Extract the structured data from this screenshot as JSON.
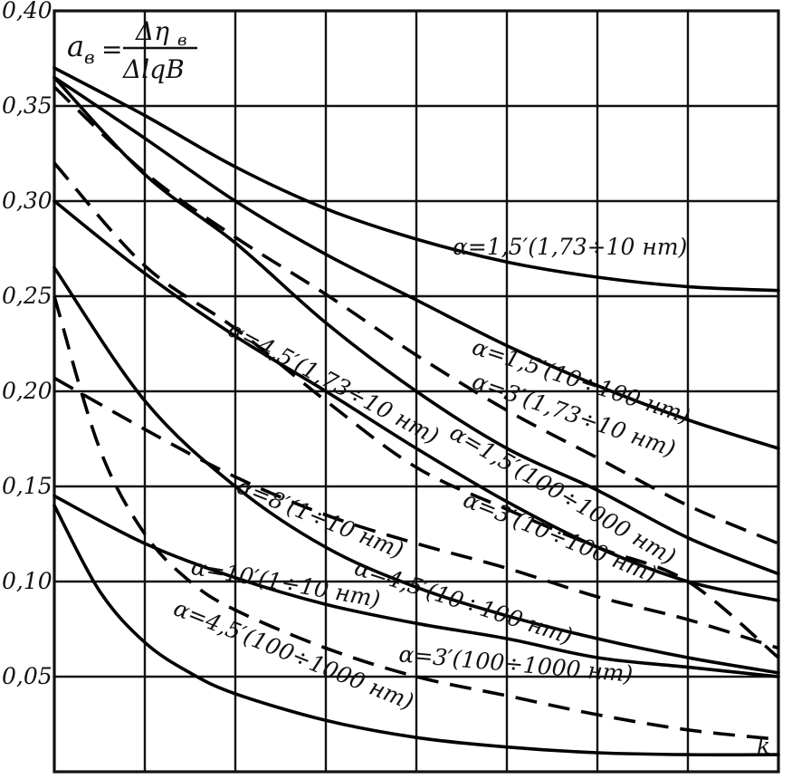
{
  "chart_data": {
    "type": "line",
    "title": "",
    "ylabel_formula": {
      "lhs": "a",
      "lhs_sub": "в",
      "eq": "=",
      "num": "Δη",
      "num_sub": "в",
      "den": "ΔlqB"
    },
    "xlabel": "k",
    "ylim": [
      0,
      0.4
    ],
    "xlim": [
      0,
      8
    ],
    "y_ticks": [
      "0,40",
      "0,35",
      "0,30",
      "0,25",
      "0,20",
      "0,15",
      "0,10",
      "0,05"
    ],
    "y_tick_values": [
      0.4,
      0.35,
      0.3,
      0.25,
      0.2,
      0.15,
      0.1,
      0.05
    ],
    "grid": true,
    "series": [
      {
        "name": "α=1,5′(1,73÷10 нт)",
        "style": "solid",
        "x": [
          0,
          1,
          2,
          3,
          4,
          5,
          6,
          7,
          8
        ],
        "y": [
          0.37,
          0.345,
          0.318,
          0.296,
          0.28,
          0.268,
          0.26,
          0.255,
          0.253
        ]
      },
      {
        "name": "α=1,5′(10÷100 нт)",
        "style": "solid",
        "x": [
          0,
          1,
          2,
          3,
          4,
          5,
          6,
          7,
          8
        ],
        "y": [
          0.365,
          0.333,
          0.3,
          0.272,
          0.248,
          0.224,
          0.203,
          0.185,
          0.17
        ]
      },
      {
        "name": "α=3′(1,73÷10 нт)",
        "style": "dashed",
        "x": [
          0,
          1,
          2,
          3,
          4,
          5,
          6,
          7,
          8
        ],
        "y": [
          0.36,
          0.315,
          0.281,
          0.251,
          0.219,
          0.19,
          0.165,
          0.14,
          0.12
        ]
      },
      {
        "name": "α=1,5′(100÷1000 нт)",
        "style": "solid",
        "x": [
          0,
          1,
          2,
          3,
          4,
          5,
          6,
          7,
          8
        ],
        "y": [
          0.365,
          0.314,
          0.278,
          0.236,
          0.2,
          0.17,
          0.148,
          0.123,
          0.104
        ]
      },
      {
        "name": "α=3′(10÷100 нт)",
        "style": "dashed",
        "x": [
          0,
          1,
          2,
          3,
          4,
          5,
          6,
          7,
          8
        ],
        "y": [
          0.32,
          0.266,
          0.233,
          0.195,
          0.16,
          0.138,
          0.118,
          0.1,
          0.06
        ]
      },
      {
        "name": "α=4,5′(1,73÷10 нт)",
        "style": "solid",
        "x": [
          0,
          1,
          2,
          3,
          4,
          5,
          6,
          7,
          8
        ],
        "y": [
          0.3,
          0.262,
          0.229,
          0.2,
          0.17,
          0.142,
          0.118,
          0.1,
          0.09
        ]
      },
      {
        "name": "α=8′(1÷10 нт)",
        "style": "solid",
        "x": [
          0,
          1,
          2,
          3,
          4,
          5,
          6,
          7,
          8
        ],
        "y": [
          0.265,
          0.195,
          0.15,
          0.118,
          0.097,
          0.082,
          0.07,
          0.06,
          0.052
        ]
      },
      {
        "name": "α=4,5′(10÷100 нт)",
        "style": "dashed",
        "x": [
          0,
          1,
          2,
          3,
          4,
          5,
          6,
          7,
          8
        ],
        "y": [
          0.207,
          0.18,
          0.155,
          0.135,
          0.12,
          0.107,
          0.092,
          0.08,
          0.065
        ]
      },
      {
        "name": "α=10′(1÷10 нт)",
        "style": "solid",
        "x": [
          0,
          1,
          2,
          3,
          4,
          5,
          6,
          7,
          8
        ],
        "y": [
          0.145,
          0.12,
          0.102,
          0.088,
          0.078,
          0.07,
          0.06,
          0.055,
          0.05
        ]
      },
      {
        "name": "α=3′(100÷1000 нт)",
        "style": "dashed",
        "x": [
          0,
          0.5,
          1,
          1.5,
          2,
          3,
          4,
          5,
          6,
          7,
          8
        ],
        "y": [
          0.25,
          0.17,
          0.125,
          0.1,
          0.085,
          0.065,
          0.05,
          0.04,
          0.03,
          0.022,
          0.017
        ]
      },
      {
        "name": "α=4,5′(100÷1000 нт)",
        "style": "solid",
        "x": [
          0,
          0.5,
          1,
          1.5,
          2,
          3,
          4,
          5,
          6,
          7,
          8
        ],
        "y": [
          0.14,
          0.095,
          0.068,
          0.052,
          0.041,
          0.027,
          0.018,
          0.013,
          0.01,
          0.009,
          0.009
        ]
      }
    ],
    "annotations": [
      {
        "text": "α=1,5′(1,73÷10 нт)",
        "series": 0,
        "at_x": 4.4,
        "at_y": 0.272,
        "angle": 0
      },
      {
        "text": "α=1,5′(10÷100 нт)",
        "series": 1,
        "at_x": 4.6,
        "at_y": 0.22,
        "angle": 18
      },
      {
        "text": "α=3′(1,73÷10 нт)",
        "series": 2,
        "at_x": 4.6,
        "at_y": 0.202,
        "angle": 19
      },
      {
        "text": "α=4,5′(1,73÷10 нт)",
        "series": 5,
        "at_x": 1.9,
        "at_y": 0.23,
        "angle": 28
      },
      {
        "text": "α=1,5′(100÷1000 нт)",
        "series": 3,
        "at_x": 4.35,
        "at_y": 0.176,
        "angle": 30
      },
      {
        "text": "α=8′(1÷10 нт)",
        "series": 6,
        "at_x": 2.0,
        "at_y": 0.147,
        "angle": 22
      },
      {
        "text": "α=3′(10÷100 нт)",
        "series": 4,
        "at_x": 4.5,
        "at_y": 0.14,
        "angle": 22
      },
      {
        "text": "α=4,5′(10÷100 нт)",
        "series": 7,
        "at_x": 3.3,
        "at_y": 0.104,
        "angle": 18
      },
      {
        "text": "α=10′(1÷10 нт)",
        "series": 8,
        "at_x": 1.5,
        "at_y": 0.104,
        "angle": 10
      },
      {
        "text": "α=3′(100÷1000 нт)",
        "series": 9,
        "at_x": 3.8,
        "at_y": 0.058,
        "angle": 5
      },
      {
        "text": "α=4,5′(100÷1000 нт)",
        "series": 10,
        "at_x": 1.3,
        "at_y": 0.083,
        "angle": 22
      }
    ]
  }
}
